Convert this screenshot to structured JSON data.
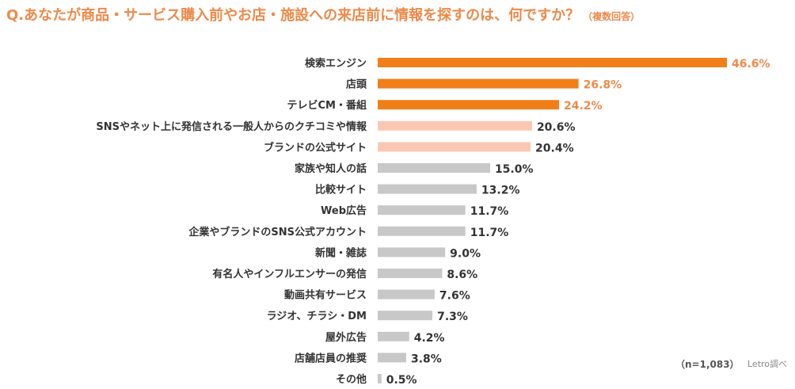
{
  "title": "Q.あなたが商品・サービス購入前やお店・施設への来店前に情報を探すのは、何ですか？",
  "title_note": "（複数回答）",
  "sample_note": "（n=1,083）",
  "source_note": "Letro調べ",
  "colors": {
    "title": "#ee8a4a",
    "bar_top": "#f07f1a",
    "bar_mid": "#fac8b2",
    "bar_rest": "#c8c8c8",
    "label_top": "#ee8a4a",
    "label_rest": "#333333"
  },
  "chart_data": {
    "type": "bar",
    "orientation": "horizontal",
    "title": "Q.あなたが商品・サービス購入前やお店・施設への来店前に情報を探すのは、何ですか？（複数回答）",
    "xlabel": "",
    "ylabel": "",
    "unit": "%",
    "xlim": [
      0,
      50
    ],
    "categories": [
      "検索エンジン",
      "店頭",
      "テレビCM・番組",
      "SNSやネット上に発信される一般人からのクチコミや情報",
      "ブランドの公式サイト",
      "家族や知人の話",
      "比較サイト",
      "Web広告",
      "企業やブランドのSNS公式アカウント",
      "新聞・雑誌",
      "有名人やインフルエンサーの発信",
      "動画共有サービス",
      "ラジオ、チラシ・DM",
      "屋外広告",
      "店舗店員の推奨",
      "その他"
    ],
    "values": [
      46.6,
      26.8,
      24.2,
      20.6,
      20.4,
      15.0,
      13.2,
      11.7,
      11.7,
      9.0,
      8.6,
      7.6,
      7.3,
      4.2,
      3.8,
      0.5
    ],
    "value_labels": [
      "46.6%",
      "26.8%",
      "24.2%",
      "20.6%",
      "20.4%",
      "15.0%",
      "13.2%",
      "11.7%",
      "11.7%",
      "9.0%",
      "8.6%",
      "7.6%",
      "7.3%",
      "4.2%",
      "3.8%",
      "0.5%"
    ],
    "highlight_top_n": 3,
    "highlight_second_n": 2
  }
}
